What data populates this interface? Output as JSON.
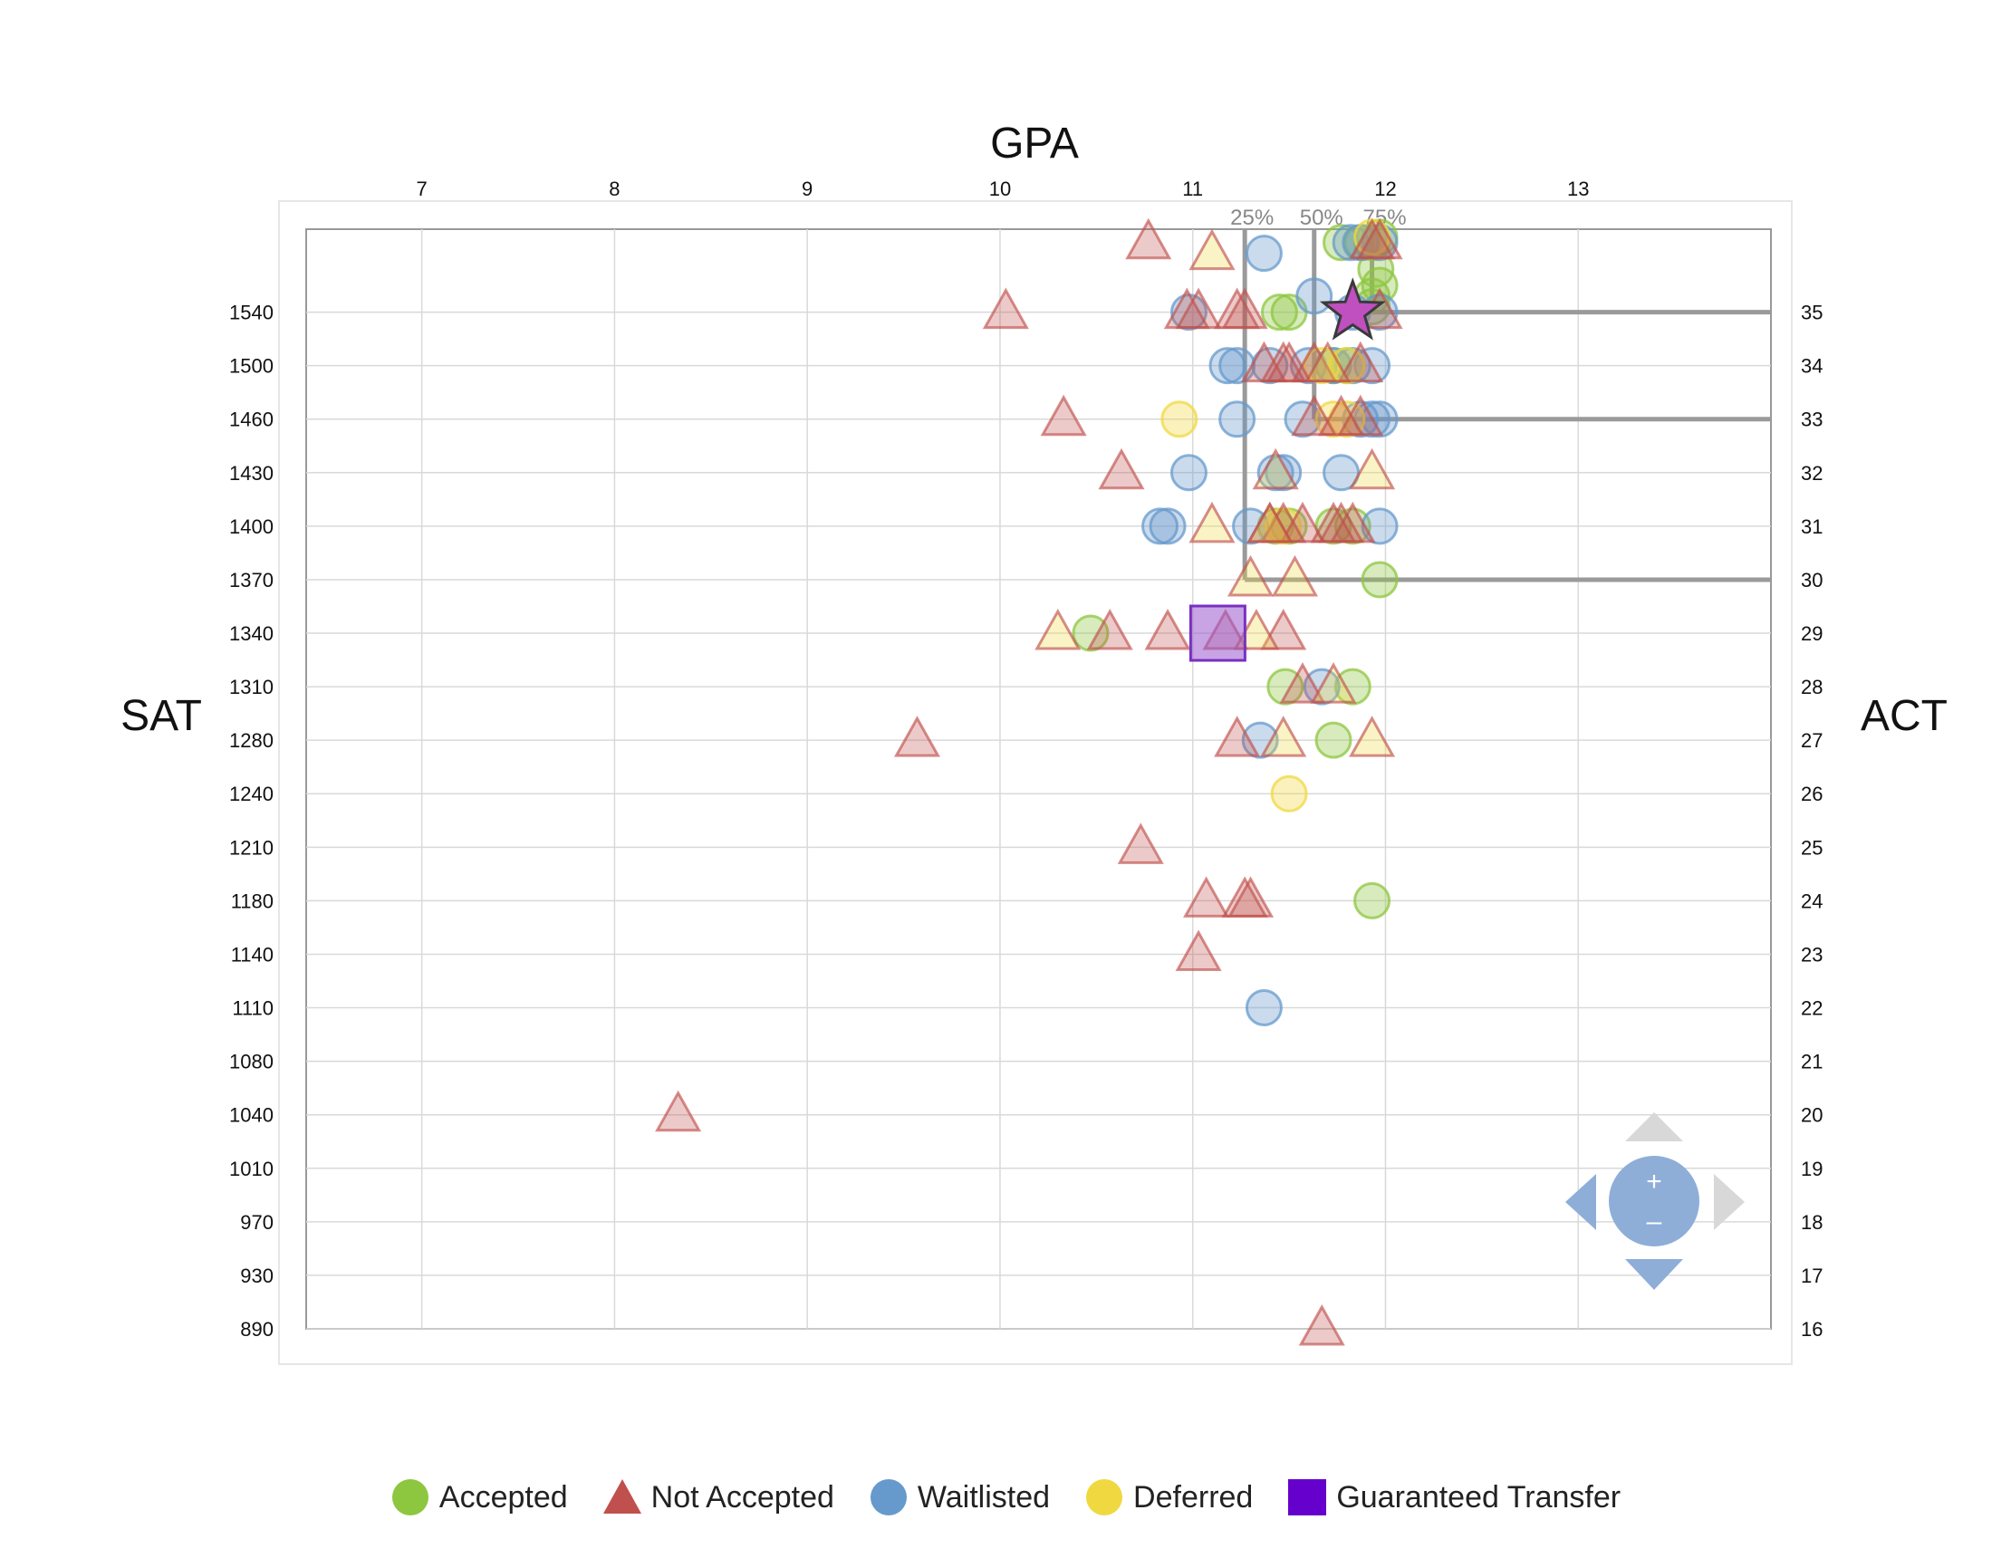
{
  "chart_data": {
    "type": "scatter",
    "title": "",
    "xlabel": "GPA",
    "ylabel_left": "SAT",
    "ylabel_right": "ACT",
    "x_range": [
      6.4,
      14.0
    ],
    "x_ticks": [
      "7",
      "8",
      "9",
      "10",
      "11",
      "12",
      "13"
    ],
    "x_tick_values": [
      7,
      8,
      9,
      10,
      11,
      12,
      13
    ],
    "sat_ticks": [
      "1540",
      "1500",
      "1460",
      "1430",
      "1400",
      "1370",
      "1340",
      "1310",
      "1280",
      "1240",
      "1210",
      "1180",
      "1140",
      "1110",
      "1080",
      "1040",
      "1010",
      "970",
      "930",
      "890"
    ],
    "act_ticks": [
      "35",
      "34",
      "33",
      "32",
      "31",
      "30",
      "29",
      "28",
      "27",
      "26",
      "25",
      "24",
      "23",
      "22",
      "21",
      "20",
      "19",
      "18",
      "17",
      "16"
    ],
    "y_levels": [
      16,
      17,
      18,
      19,
      20,
      21,
      22,
      23,
      24,
      25,
      26,
      27,
      28,
      29,
      30,
      31,
      32,
      33,
      34,
      35
    ],
    "y_range_act": [
      16,
      36.55
    ],
    "grid": true,
    "legend_position": "bottom",
    "percentile_markers": {
      "gpa": [
        {
          "label": "25%",
          "x": 11.27
        },
        {
          "label": "50%",
          "x": 11.63
        },
        {
          "label": "75%",
          "x": 11.93
        }
      ],
      "act": [
        {
          "label": "",
          "y": 30
        },
        {
          "label": "",
          "y": 33
        },
        {
          "label": "",
          "y": 35
        }
      ]
    },
    "series": [
      {
        "name": "Accepted",
        "shape": "circle",
        "color": "#8dc63f",
        "points": [
          [
            11.77,
            36.3
          ],
          [
            11.88,
            36.3
          ],
          [
            11.97,
            36.4
          ],
          [
            11.93,
            36.3
          ],
          [
            11.95,
            35.8
          ],
          [
            11.97,
            35.5
          ],
          [
            11.93,
            35.3
          ],
          [
            11.45,
            35.0
          ],
          [
            11.5,
            35.0
          ],
          [
            11.93,
            35.1
          ],
          [
            11.73,
            34.0
          ],
          [
            11.8,
            34.0
          ],
          [
            11.43,
            31.0
          ],
          [
            11.5,
            31.0
          ],
          [
            11.73,
            31.0
          ],
          [
            11.83,
            31.0
          ],
          [
            11.97,
            30.0
          ],
          [
            10.47,
            29.0
          ],
          [
            11.48,
            28.0
          ],
          [
            11.83,
            28.0
          ],
          [
            11.73,
            27.0
          ],
          [
            11.93,
            24.0
          ]
        ]
      },
      {
        "name": "Waitlisted",
        "shape": "circle",
        "color": "#6699cc",
        "points": [
          [
            11.37,
            36.1
          ],
          [
            11.82,
            36.3
          ],
          [
            11.87,
            36.3
          ],
          [
            11.97,
            36.3
          ],
          [
            11.63,
            35.3
          ],
          [
            10.98,
            35.0
          ],
          [
            11.83,
            35.0
          ],
          [
            11.97,
            35.0
          ],
          [
            11.18,
            34.0
          ],
          [
            11.23,
            34.0
          ],
          [
            11.4,
            34.0
          ],
          [
            11.6,
            34.0
          ],
          [
            11.73,
            34.0
          ],
          [
            11.83,
            34.0
          ],
          [
            11.93,
            34.0
          ],
          [
            11.23,
            33.0
          ],
          [
            11.57,
            33.0
          ],
          [
            11.87,
            33.0
          ],
          [
            11.93,
            33.0
          ],
          [
            11.97,
            33.0
          ],
          [
            10.98,
            32.0
          ],
          [
            11.43,
            32.0
          ],
          [
            11.47,
            32.0
          ],
          [
            11.77,
            32.0
          ],
          [
            10.83,
            31.0
          ],
          [
            10.87,
            31.0
          ],
          [
            11.3,
            31.0
          ],
          [
            11.97,
            31.0
          ],
          [
            11.67,
            28.0
          ],
          [
            11.35,
            27.0
          ],
          [
            11.37,
            22.0
          ]
        ]
      },
      {
        "name": "Deferred",
        "shape": "circle",
        "color": "#f0d840",
        "points": [
          [
            11.93,
            36.4
          ],
          [
            11.67,
            34.0
          ],
          [
            11.8,
            34.0
          ],
          [
            10.93,
            33.0
          ],
          [
            11.73,
            33.0
          ],
          [
            11.8,
            33.0
          ],
          [
            11.47,
            31.0
          ],
          [
            11.5,
            26.0
          ]
        ]
      },
      {
        "name": "Not Accepted",
        "shape": "triangle",
        "color": "#c0504d",
        "points": [
          [
            10.77,
            36.3
          ],
          [
            11.93,
            36.3
          ],
          [
            11.97,
            36.3
          ],
          [
            11.97,
            35.0
          ],
          [
            10.03,
            35.0
          ],
          [
            10.97,
            35.0
          ],
          [
            11.03,
            35.0
          ],
          [
            11.23,
            35.0
          ],
          [
            11.27,
            35.0
          ],
          [
            11.37,
            34.0
          ],
          [
            11.47,
            34.0
          ],
          [
            11.5,
            34.0
          ],
          [
            11.63,
            34.0
          ],
          [
            11.87,
            34.0
          ],
          [
            10.33,
            33.0
          ],
          [
            11.63,
            33.0
          ],
          [
            11.77,
            33.0
          ],
          [
            11.87,
            33.0
          ],
          [
            10.63,
            32.0
          ],
          [
            11.4,
            31.0
          ],
          [
            11.47,
            31.0
          ],
          [
            11.57,
            31.0
          ],
          [
            11.73,
            31.0
          ],
          [
            11.77,
            31.0
          ],
          [
            11.83,
            31.0
          ],
          [
            10.57,
            29.0
          ],
          [
            10.87,
            29.0
          ],
          [
            11.17,
            29.0
          ],
          [
            11.47,
            29.0
          ],
          [
            11.57,
            28.0
          ],
          [
            9.57,
            27.0
          ],
          [
            11.23,
            27.0
          ],
          [
            10.73,
            25.0
          ],
          [
            11.07,
            24.0
          ],
          [
            11.27,
            24.0
          ],
          [
            11.3,
            24.0
          ],
          [
            11.03,
            23.0
          ],
          [
            8.33,
            20.0
          ],
          [
            11.67,
            16.0
          ]
        ]
      },
      {
        "name": "Not Accepted (deferred)",
        "shape": "triangle",
        "color": "#f0d840",
        "points": [
          [
            11.1,
            36.1
          ],
          [
            11.1,
            31.0
          ],
          [
            11.4,
            31.0
          ],
          [
            11.93,
            32.0
          ],
          [
            11.3,
            30.0
          ],
          [
            11.53,
            30.0
          ],
          [
            10.3,
            29.0
          ],
          [
            11.33,
            29.0
          ],
          [
            11.73,
            28.0
          ],
          [
            11.47,
            27.0
          ],
          [
            11.93,
            27.0
          ],
          [
            11.43,
            32.0
          ],
          [
            11.7,
            34.0
          ]
        ]
      },
      {
        "name": "Guaranteed Transfer",
        "shape": "square",
        "color": "#6600cc",
        "points": [
          [
            11.13,
            29.0
          ]
        ]
      },
      {
        "name": "You",
        "shape": "star",
        "color": "#c050c0",
        "points": [
          [
            11.83,
            35.0
          ]
        ]
      }
    ]
  },
  "legend": [
    {
      "label": "Accepted",
      "color": "#8dc63f",
      "shape": "circle"
    },
    {
      "label": "Not Accepted",
      "color": "#c0504d",
      "shape": "triangle"
    },
    {
      "label": "Waitlisted",
      "color": "#6699cc",
      "shape": "circle"
    },
    {
      "label": "Deferred",
      "color": "#f0d840",
      "shape": "circle"
    },
    {
      "label": "Guaranteed Transfer",
      "color": "#6600cc",
      "shape": "square"
    }
  ],
  "zoom_control": {
    "plus": "+",
    "minus": "–"
  }
}
